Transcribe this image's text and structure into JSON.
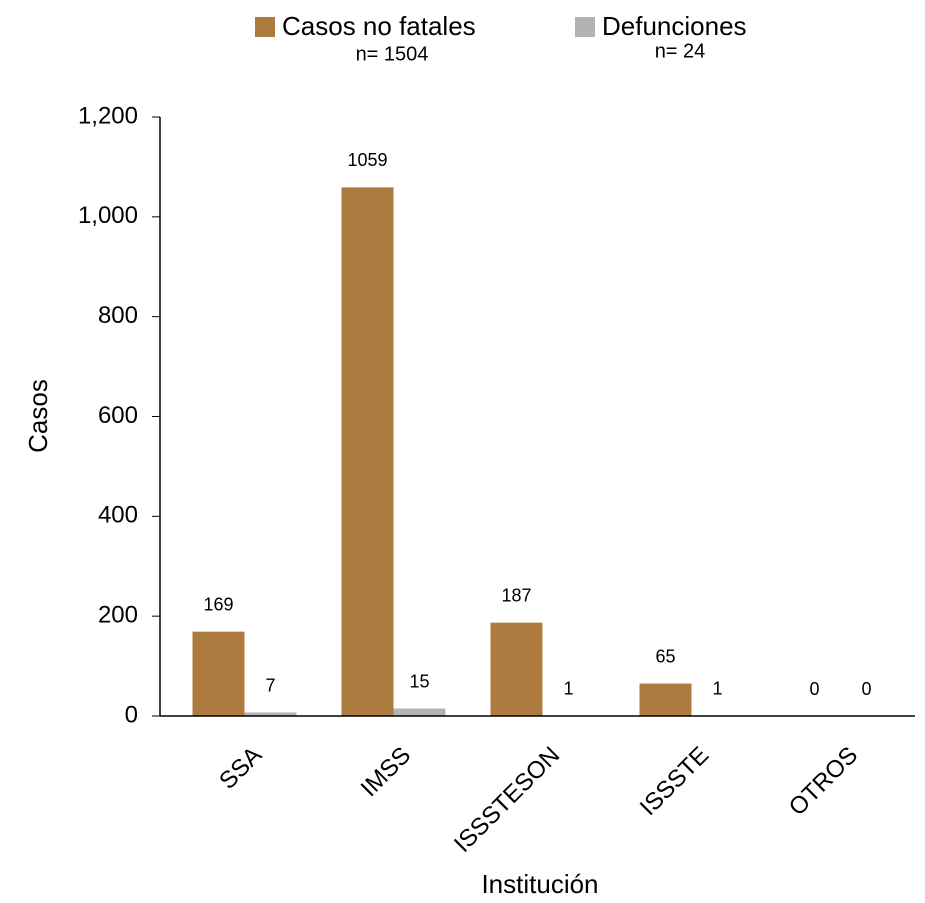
{
  "chart_data": {
    "type": "bar",
    "x_label": "Institución",
    "y_label": "Casos",
    "categories": [
      "SSA",
      "IMSS",
      "ISSSTESON",
      "ISSSTE",
      "OTROS"
    ],
    "series": [
      {
        "name": "Casos no fatales",
        "n_label": "n= 1504",
        "color": "#ad7b40",
        "label_color": "#595959",
        "values": [
          169,
          1059,
          187,
          65,
          0
        ]
      },
      {
        "name": "Defunciones",
        "n_label": "n= 24",
        "color": "#b3b3b3",
        "label_color": "#000000",
        "values": [
          7,
          15,
          1,
          1,
          0
        ]
      }
    ],
    "ylim": [
      0,
      1200
    ],
    "yticks": [
      0,
      200,
      400,
      600,
      800,
      {
        "value": 1000,
        "label": "1,000"
      },
      {
        "value": 1200,
        "label": "1,200"
      }
    ],
    "grid": false
  }
}
